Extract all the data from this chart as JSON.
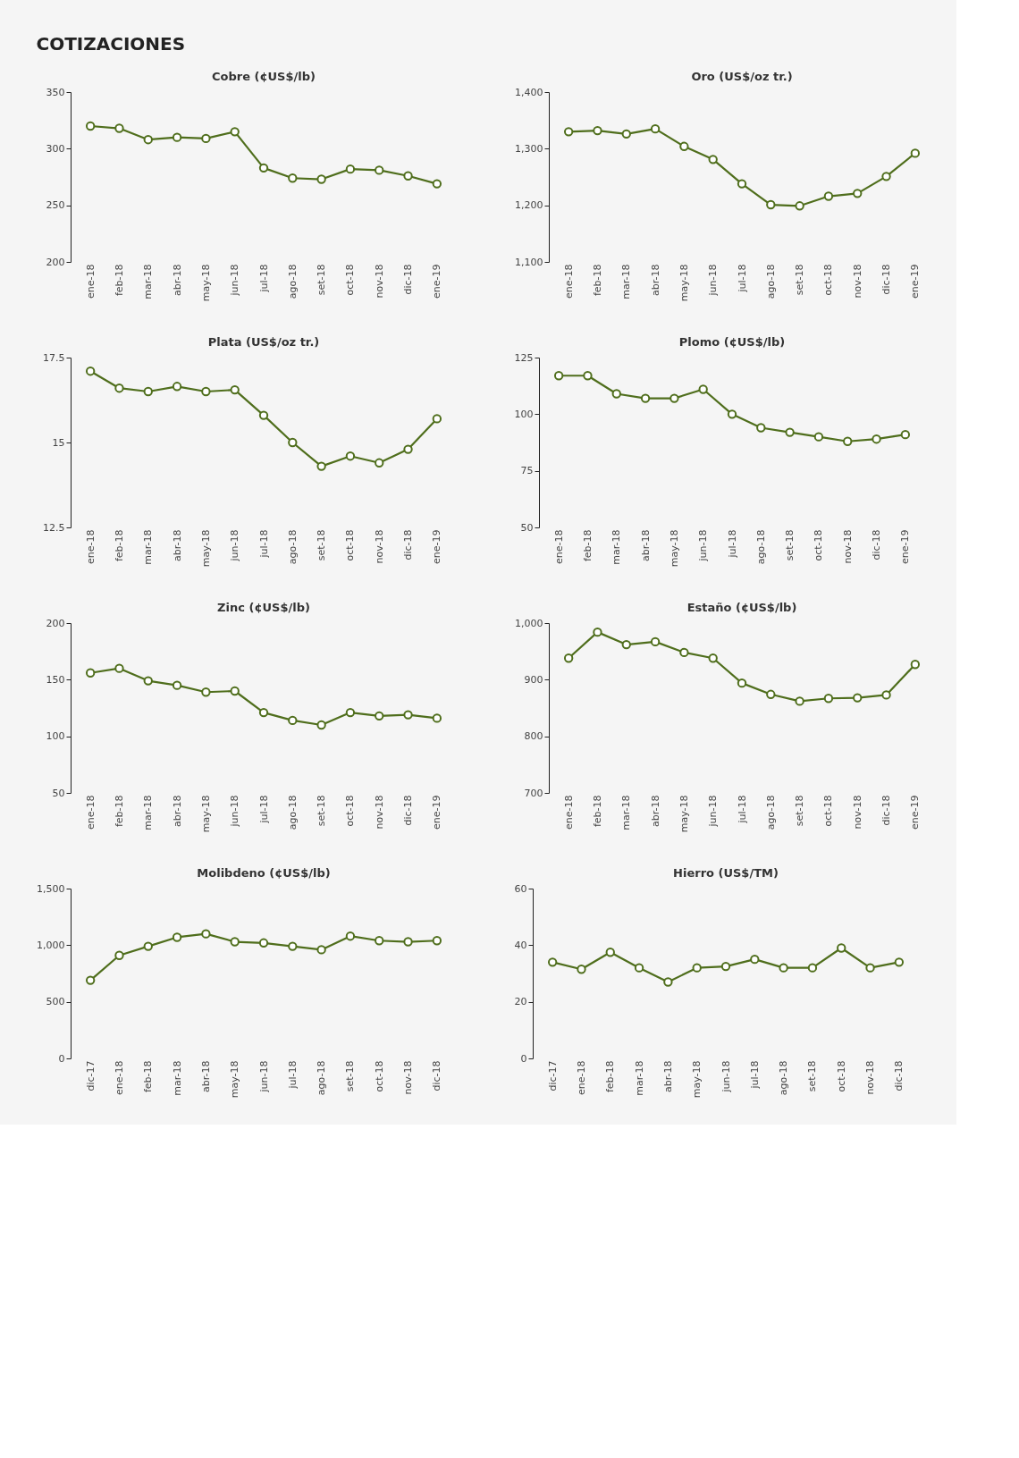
{
  "chart_data": [
    {
      "type": "line",
      "title": "Cobre (¢US$/lb)",
      "annotations": [
        "COTIZACIONES"
      ],
      "categories": [
        "ene-18",
        "feb-18",
        "mar-18",
        "abr-18",
        "may-18",
        "jun-18",
        "jul-18",
        "ago-18",
        "set-18",
        "oct-18",
        "nov-18",
        "dic-18",
        "ene-19"
      ],
      "series": [
        {
          "color": "#4f6e1c",
          "values": [
            320,
            318,
            308,
            310,
            309,
            315,
            283,
            274,
            273,
            282,
            281,
            276,
            269
          ]
        }
      ],
      "ylim": [
        200,
        350
      ],
      "yticks": [
        200,
        250,
        300,
        350
      ],
      "grid": false,
      "marker": "circle",
      "line_style": "solid"
    },
    {
      "type": "line",
      "title": "Oro (US$/oz tr.)",
      "categories": [
        "ene-18",
        "feb-18",
        "mar-18",
        "abr-18",
        "may-18",
        "jun-18",
        "jul-18",
        "ago-18",
        "set-18",
        "oct-18",
        "nov-18",
        "dic-18",
        "ene-19"
      ],
      "series": [
        {
          "color": "#4f6e1c",
          "values": [
            1330,
            1332,
            1326,
            1335,
            1304,
            1281,
            1238,
            1201,
            1199,
            1216,
            1221,
            1251,
            1292
          ]
        }
      ],
      "ylim": [
        1100,
        1400
      ],
      "yticks": [
        {
          "value": 1100,
          "label": "1,100"
        },
        {
          "value": 1200,
          "label": "1,200"
        },
        {
          "value": 1300,
          "label": "1,300"
        },
        {
          "value": 1400,
          "label": "1,400"
        }
      ],
      "grid": false,
      "marker": "circle",
      "line_style": "solid"
    },
    {
      "type": "line",
      "title": "Plata (US$/oz tr.)",
      "categories": [
        "ene-18",
        "feb-18",
        "mar-18",
        "abr-18",
        "may-18",
        "jun-18",
        "jul-18",
        "ago-18",
        "set-18",
        "oct-18",
        "nov-18",
        "dic-18",
        "ene-19"
      ],
      "series": [
        {
          "color": "#4f6e1c",
          "values": [
            17.1,
            16.6,
            16.5,
            16.65,
            16.5,
            16.55,
            15.8,
            15.0,
            14.3,
            14.6,
            14.4,
            14.8,
            15.7
          ]
        }
      ],
      "ylim": [
        12.5,
        17.5
      ],
      "yticks": [
        12.5,
        15,
        17.5
      ],
      "grid": false,
      "marker": "circle",
      "line_style": "solid"
    },
    {
      "type": "line",
      "title": "Plomo (¢US$/lb)",
      "categories": [
        "ene-18",
        "feb-18",
        "mar-18",
        "abr-18",
        "may-18",
        "jun-18",
        "jul-18",
        "ago-18",
        "set-18",
        "oct-18",
        "nov-18",
        "dic-18",
        "ene-19"
      ],
      "series": [
        {
          "color": "#4f6e1c",
          "values": [
            117,
            117,
            109,
            107,
            107,
            111,
            100,
            94,
            92,
            90,
            88,
            89,
            91
          ]
        }
      ],
      "ylim": [
        50,
        125
      ],
      "yticks": [
        50,
        75,
        100,
        125
      ],
      "grid": false,
      "marker": "circle",
      "line_style": "solid"
    },
    {
      "type": "line",
      "title": "Zinc (¢US$/lb)",
      "categories": [
        "ene-18",
        "feb-18",
        "mar-18",
        "abr-18",
        "may-18",
        "jun-18",
        "jul-18",
        "ago-18",
        "set-18",
        "oct-18",
        "nov-18",
        "dic-18",
        "ene-19"
      ],
      "series": [
        {
          "color": "#4f6e1c",
          "values": [
            156,
            160,
            149,
            145,
            139,
            140,
            121,
            114,
            110,
            121,
            118,
            119,
            116
          ]
        }
      ],
      "ylim": [
        50,
        200
      ],
      "yticks": [
        50,
        100,
        150,
        200
      ],
      "grid": false,
      "marker": "circle",
      "line_style": "solid"
    },
    {
      "type": "line",
      "title": "Estaño (¢US$/lb)",
      "categories": [
        "ene-18",
        "feb-18",
        "mar-18",
        "abr-18",
        "may-18",
        "jun-18",
        "jul-18",
        "ago-18",
        "set-18",
        "oct-18",
        "nov-18",
        "dic-18",
        "ene-19"
      ],
      "series": [
        {
          "color": "#4f6e1c",
          "values": [
            938,
            984,
            962,
            967,
            948,
            938,
            894,
            874,
            862,
            867,
            868,
            873,
            927
          ]
        }
      ],
      "ylim": [
        700,
        1000
      ],
      "yticks": [
        700,
        800,
        900,
        {
          "value": 1000,
          "label": "1,000"
        }
      ],
      "grid": false,
      "marker": "circle",
      "line_style": "solid"
    },
    {
      "type": "line",
      "title": "Molibdeno (¢US$/lb)",
      "categories": [
        "dic-17",
        "ene-18",
        "feb-18",
        "mar-18",
        "abr-18",
        "may-18",
        "jun-18",
        "jul-18",
        "ago-18",
        "set-18",
        "oct-18",
        "nov-18",
        "dic-18"
      ],
      "series": [
        {
          "color": "#4f6e1c",
          "values": [
            690,
            910,
            990,
            1070,
            1100,
            1030,
            1020,
            990,
            960,
            1080,
            1040,
            1030,
            1040
          ]
        }
      ],
      "ylim": [
        0,
        1500
      ],
      "yticks": [
        0,
        500,
        {
          "value": 1000,
          "label": "1,000"
        },
        {
          "value": 1500,
          "label": "1,500"
        }
      ],
      "grid": false,
      "marker": "circle",
      "line_style": "solid"
    },
    {
      "type": "line",
      "title": "Hierro (US$/TM)",
      "categories": [
        "dic-17",
        "ene-18",
        "feb-18",
        "mar-18",
        "abr-18",
        "may-18",
        "jun-18",
        "jul-18",
        "ago-18",
        "set-18",
        "oct-18",
        "nov-18",
        "dic-18"
      ],
      "series": [
        {
          "color": "#4f6e1c",
          "values": [
            34,
            31.5,
            37.5,
            32,
            27,
            32,
            32.5,
            35,
            32,
            32,
            39,
            32,
            34
          ]
        }
      ],
      "ylim": [
        0,
        60
      ],
      "yticks": [
        0,
        20,
        40,
        60
      ],
      "grid": false,
      "marker": "circle",
      "line_style": "solid"
    }
  ]
}
